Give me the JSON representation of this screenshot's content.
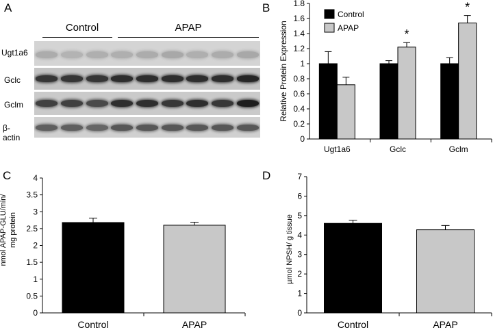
{
  "panels": {
    "a": "A",
    "b": "B",
    "c": "C",
    "d": "D"
  },
  "blot": {
    "groups": [
      "Control",
      "APAP"
    ],
    "rows": [
      {
        "label": "Ugt1a6",
        "background": "#d4d4d4",
        "band_color": "#8c8c8c",
        "band_intensity": [
          0.55,
          0.45,
          0.5,
          0.5,
          0.55,
          0.6,
          0.5,
          0.55,
          0.6
        ]
      },
      {
        "label": "Gclc",
        "background": "#c4c4c4",
        "band_color": "#1e1e1e",
        "band_intensity": [
          0.85,
          0.85,
          0.85,
          0.9,
          0.9,
          0.9,
          0.9,
          0.9,
          0.95
        ]
      },
      {
        "label": "Gclm",
        "background": "#cacaca",
        "band_color": "#1e1e1e",
        "band_intensity": [
          0.8,
          0.8,
          0.75,
          0.9,
          0.9,
          0.85,
          0.9,
          0.85,
          1.0
        ]
      },
      {
        "label": "β-actin",
        "background": "#d0d0d0",
        "band_color": "#3a3a3a",
        "band_intensity": [
          0.75,
          0.75,
          0.7,
          0.8,
          0.8,
          0.8,
          0.8,
          0.8,
          0.8
        ]
      }
    ]
  },
  "chart_data": [
    {
      "panel": "B",
      "type": "bar",
      "categories": [
        "Ugt1a6",
        "Gclc",
        "Gclm"
      ],
      "series": [
        {
          "name": "Control",
          "color": "#000000",
          "values": [
            1.0,
            1.0,
            1.0
          ],
          "errors": [
            0.16,
            0.04,
            0.08
          ]
        },
        {
          "name": "APAP",
          "color": "#c8c8c8",
          "values": [
            0.72,
            1.22,
            1.54
          ],
          "errors": [
            0.1,
            0.06,
            0.1
          ]
        }
      ],
      "significance": [
        "",
        "*",
        "*"
      ],
      "ylabel": "Relative Protein Expression",
      "xlabel": "",
      "ylim": [
        0,
        1.8
      ],
      "yticks": [
        "0",
        "0.2",
        "0.4",
        "0.6",
        "0.8",
        "1",
        "1.2",
        "1.4",
        "1.6",
        "1.8"
      ],
      "legend": "top-left",
      "grid": false
    },
    {
      "panel": "C",
      "type": "bar",
      "categories": [
        "Control",
        "APAP"
      ],
      "values": [
        2.68,
        2.6
      ],
      "errors": [
        0.13,
        0.09
      ],
      "colors": [
        "#000000",
        "#c8c8c8"
      ],
      "ylabel_lines": [
        "nmol APAP-GLU/min/",
        "mg protein"
      ],
      "xlabel": "",
      "ylim": [
        0,
        4
      ],
      "yticks": [
        "0",
        "0.5",
        "1",
        "1.5",
        "2",
        "2.5",
        "3",
        "3.5",
        "4"
      ],
      "grid": false
    },
    {
      "panel": "D",
      "type": "bar",
      "categories": [
        "Control",
        "APAP"
      ],
      "values": [
        4.6,
        4.27
      ],
      "errors": [
        0.16,
        0.22
      ],
      "colors": [
        "#000000",
        "#c8c8c8"
      ],
      "ylabel_lines": [
        "µmol NPSH/ g  tissue"
      ],
      "xlabel": "",
      "ylim": [
        0,
        7
      ],
      "yticks": [
        "0",
        "1",
        "2",
        "3",
        "4",
        "5",
        "6",
        "7"
      ],
      "grid": false
    }
  ]
}
